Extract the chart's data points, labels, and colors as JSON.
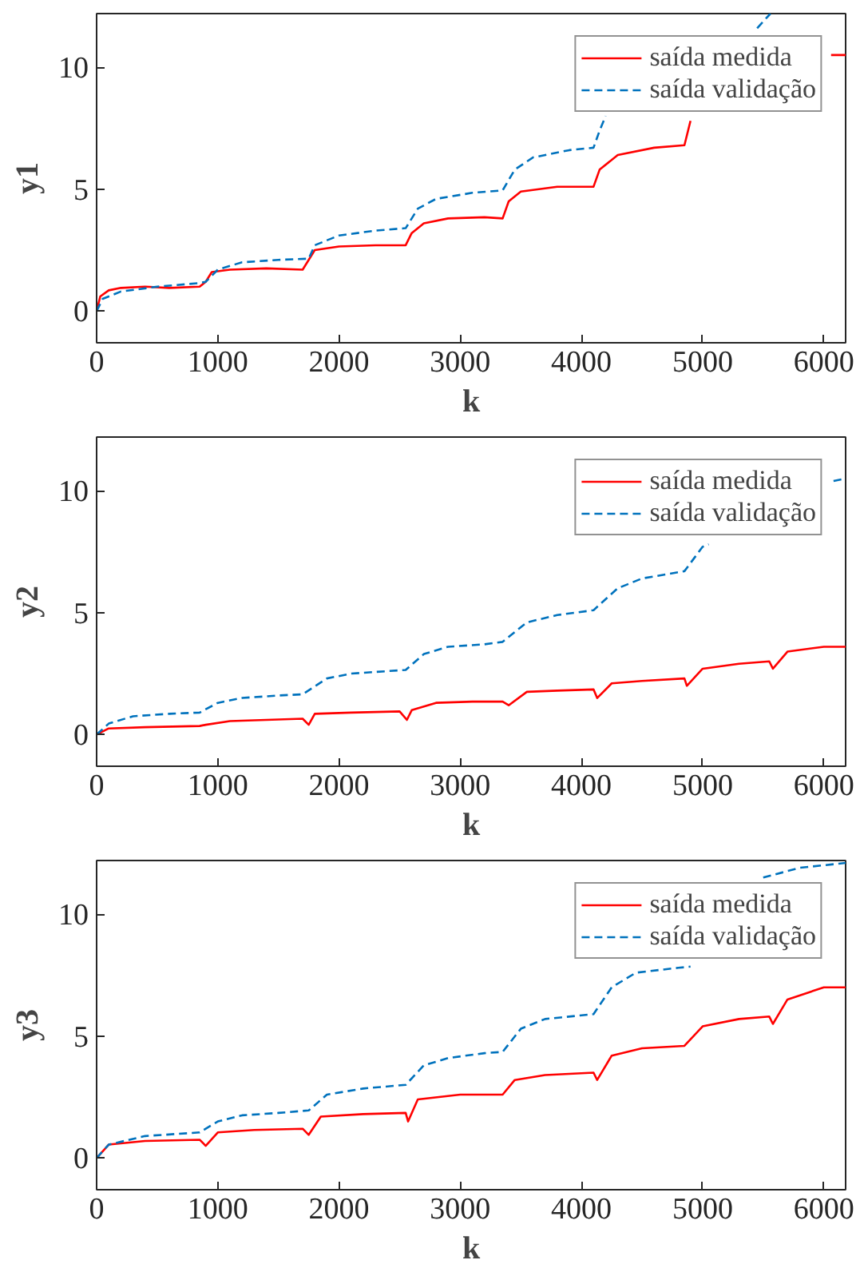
{
  "chart_data": [
    {
      "type": "line",
      "xlabel": "k",
      "ylabel": "y1",
      "xlim": [
        0,
        6180
      ],
      "ylim": [
        -1.3,
        12.2
      ],
      "xticks": [
        0,
        1000,
        2000,
        3000,
        4000,
        5000,
        6000
      ],
      "yticks": [
        0,
        5,
        10
      ],
      "grid": false,
      "legend": "top right",
      "series": [
        {
          "name": "saída medida",
          "color": "#ff0000",
          "line_style": "solid",
          "x": [
            0,
            30,
            100,
            200,
            400,
            600,
            850,
            900,
            950,
            1100,
            1400,
            1700,
            1750,
            1800,
            2000,
            2300,
            2550,
            2600,
            2700,
            2900,
            3200,
            3350,
            3400,
            3500,
            3800,
            4100,
            4150,
            4300,
            4600,
            4850,
            4900,
            4950,
            6060,
            6180
          ],
          "values": [
            0,
            0.6,
            0.85,
            0.95,
            1.0,
            0.95,
            1.0,
            1.2,
            1.6,
            1.7,
            1.75,
            1.7,
            2.1,
            2.5,
            2.65,
            2.7,
            2.7,
            3.2,
            3.6,
            3.8,
            3.85,
            3.8,
            4.5,
            4.9,
            5.1,
            5.1,
            5.8,
            6.4,
            6.7,
            6.8,
            7.8,
            null,
            10.5,
            10.5
          ]
        },
        {
          "name": "saída validação",
          "color": "#0072bd",
          "line_style": "dashed",
          "x": [
            0,
            50,
            200,
            500,
            850,
            900,
            1000,
            1200,
            1500,
            1750,
            1800,
            2000,
            2300,
            2550,
            2650,
            2800,
            3100,
            3350,
            3450,
            3600,
            3900,
            4100,
            4150,
            4200,
            4300,
            5450,
            5560
          ],
          "values": [
            0,
            0.5,
            0.8,
            1.0,
            1.15,
            1.2,
            1.7,
            2.0,
            2.1,
            2.15,
            2.7,
            3.1,
            3.3,
            3.4,
            4.2,
            4.6,
            4.85,
            4.95,
            5.8,
            6.3,
            6.6,
            6.7,
            7.4,
            8.0,
            null,
            11.6,
            12.2
          ]
        }
      ]
    },
    {
      "type": "line",
      "xlabel": "k",
      "ylabel": "y2",
      "xlim": [
        0,
        6180
      ],
      "ylim": [
        -1.3,
        12.2
      ],
      "xticks": [
        0,
        1000,
        2000,
        3000,
        4000,
        5000,
        6000
      ],
      "yticks": [
        0,
        5,
        10
      ],
      "grid": false,
      "legend": "top right",
      "series": [
        {
          "name": "saída medida",
          "color": "#ff0000",
          "line_style": "solid",
          "x": [
            0,
            100,
            400,
            850,
            900,
            1100,
            1400,
            1700,
            1750,
            1800,
            2100,
            2500,
            2560,
            2600,
            2800,
            3100,
            3350,
            3400,
            3550,
            3800,
            4100,
            4130,
            4250,
            4500,
            4850,
            4870,
            5000,
            5300,
            5550,
            5580,
            5700,
            6000,
            6180
          ],
          "values": [
            0,
            0.25,
            0.3,
            0.35,
            0.4,
            0.55,
            0.6,
            0.65,
            0.4,
            0.85,
            0.9,
            0.95,
            0.6,
            1.0,
            1.3,
            1.35,
            1.35,
            1.2,
            1.75,
            1.8,
            1.85,
            1.5,
            2.1,
            2.2,
            2.3,
            2.0,
            2.7,
            2.9,
            3.0,
            2.7,
            3.4,
            3.6,
            3.6
          ]
        },
        {
          "name": "saída validação",
          "color": "#0072bd",
          "line_style": "dashed",
          "x": [
            0,
            100,
            300,
            600,
            850,
            1000,
            1200,
            1500,
            1700,
            1900,
            2100,
            2400,
            2550,
            2700,
            2900,
            3200,
            3350,
            3550,
            3800,
            4100,
            4300,
            4500,
            4850,
            5000,
            5050,
            5100,
            6080,
            6180
          ],
          "values": [
            0,
            0.45,
            0.75,
            0.85,
            0.9,
            1.3,
            1.5,
            1.6,
            1.65,
            2.3,
            2.5,
            2.6,
            2.65,
            3.3,
            3.6,
            3.7,
            3.8,
            4.6,
            4.9,
            5.1,
            6.0,
            6.4,
            6.7,
            7.7,
            7.8,
            null,
            10.4,
            10.5
          ]
        }
      ]
    },
    {
      "type": "line",
      "xlabel": "k",
      "ylabel": "y3",
      "xlim": [
        0,
        6180
      ],
      "ylim": [
        -1.3,
        12.2
      ],
      "xticks": [
        0,
        1000,
        2000,
        3000,
        4000,
        5000,
        6000
      ],
      "yticks": [
        0,
        5,
        10
      ],
      "grid": false,
      "legend": "top right",
      "series": [
        {
          "name": "saída medida",
          "color": "#ff0000",
          "line_style": "solid",
          "x": [
            0,
            100,
            400,
            850,
            900,
            1000,
            1300,
            1700,
            1750,
            1850,
            2200,
            2550,
            2570,
            2650,
            3000,
            3350,
            3450,
            3700,
            4100,
            4130,
            4250,
            4500,
            4850,
            5000,
            5300,
            5550,
            5580,
            5700,
            6000,
            6180
          ],
          "values": [
            0,
            0.55,
            0.7,
            0.75,
            0.5,
            1.05,
            1.15,
            1.2,
            0.95,
            1.7,
            1.8,
            1.85,
            1.5,
            2.4,
            2.6,
            2.6,
            3.2,
            3.4,
            3.5,
            3.2,
            4.2,
            4.5,
            4.6,
            5.4,
            5.7,
            5.8,
            5.5,
            6.5,
            7.0,
            7.0
          ]
        },
        {
          "name": "saída validação",
          "color": "#0072bd",
          "line_style": "dashed",
          "x": [
            0,
            100,
            400,
            850,
            1000,
            1200,
            1500,
            1750,
            1900,
            2200,
            2550,
            2700,
            2900,
            3200,
            3350,
            3500,
            3700,
            4100,
            4250,
            4450,
            4800,
            4900,
            5000,
            5500,
            5800,
            6180
          ],
          "values": [
            0,
            0.55,
            0.9,
            1.05,
            1.5,
            1.75,
            1.85,
            1.95,
            2.6,
            2.85,
            3.0,
            3.8,
            4.1,
            4.3,
            4.35,
            5.3,
            5.7,
            5.9,
            7.0,
            7.6,
            7.8,
            7.85,
            null,
            11.5,
            11.9,
            12.1
          ]
        }
      ]
    }
  ]
}
